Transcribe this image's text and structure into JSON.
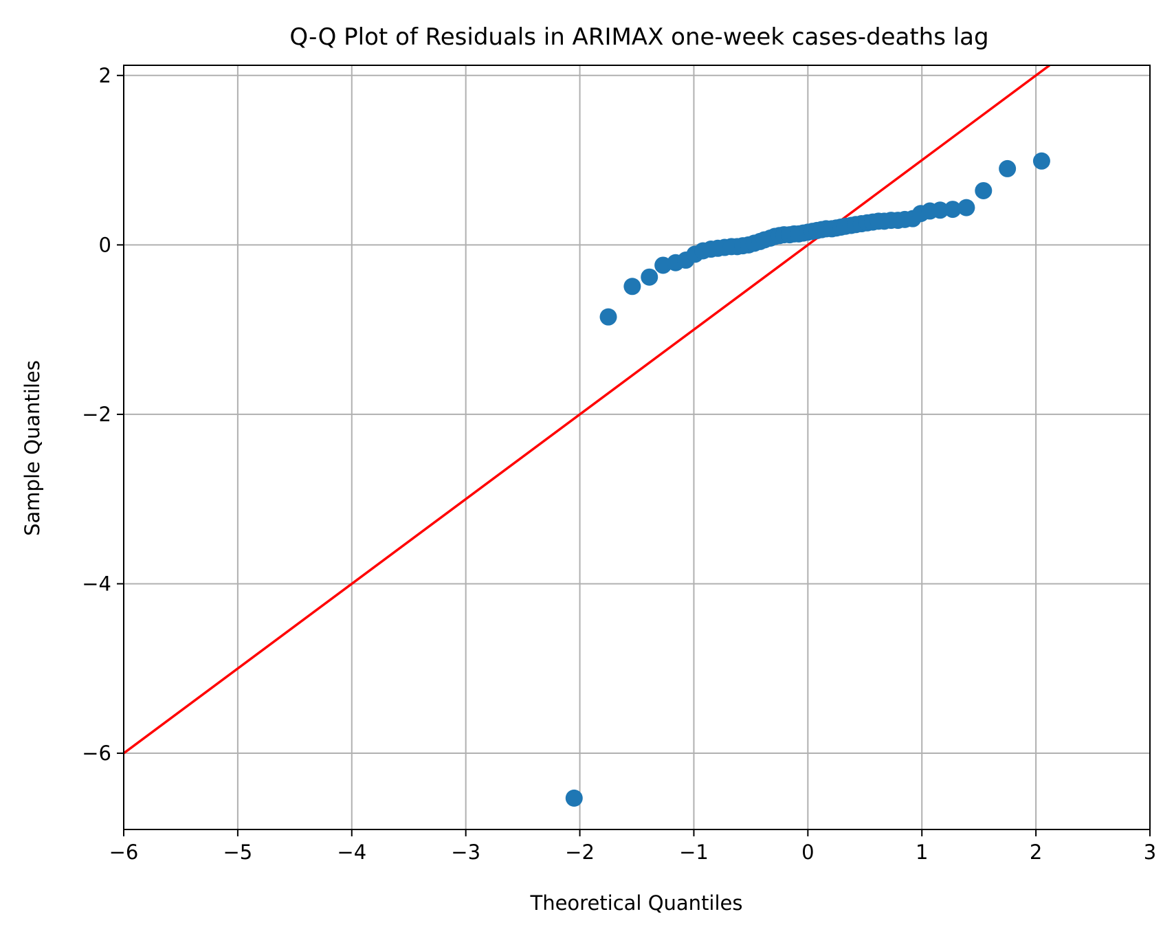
{
  "chart_data": {
    "type": "scatter",
    "title": "Q-Q Plot of Residuals in ARIMAX one-week cases-deaths lag",
    "xlabel": "Theoretical Quantiles",
    "ylabel": "Sample Quantiles",
    "xlim": [
      -6,
      3
    ],
    "ylim": [
      -6.9,
      2.12
    ],
    "xticks": [
      -6,
      -5,
      -4,
      -3,
      -2,
      -1,
      0,
      1,
      2,
      3
    ],
    "yticks": [
      -6,
      -4,
      -2,
      0,
      2
    ],
    "xtick_labels": [
      "−6",
      "−5",
      "−4",
      "−3",
      "−2",
      "−1",
      "0",
      "1",
      "2",
      "3"
    ],
    "ytick_labels": [
      "−6",
      "−4",
      "−2",
      "0",
      "2"
    ],
    "grid": true,
    "series": [
      {
        "kind": "points",
        "color": "#1f77b4",
        "x": [
          -2.05,
          -1.75,
          -1.54,
          -1.39,
          -1.27,
          -1.16,
          -1.07,
          -0.99,
          -0.92,
          -0.85,
          -0.79,
          -0.73,
          -0.67,
          -0.62,
          -0.57,
          -0.52,
          -0.47,
          -0.42,
          -0.38,
          -0.33,
          -0.29,
          -0.25,
          -0.21,
          -0.16,
          -0.12,
          -0.08,
          -0.04,
          0.0,
          0.04,
          0.08,
          0.12,
          0.16,
          0.21,
          0.25,
          0.29,
          0.33,
          0.38,
          0.42,
          0.47,
          0.52,
          0.57,
          0.62,
          0.67,
          0.73,
          0.79,
          0.85,
          0.92,
          0.99,
          1.07,
          1.16,
          1.27,
          1.39,
          1.54,
          1.75,
          2.05
        ],
        "y": [
          -6.53,
          -0.85,
          -0.49,
          -0.38,
          -0.24,
          -0.21,
          -0.18,
          -0.11,
          -0.07,
          -0.05,
          -0.04,
          -0.03,
          -0.02,
          -0.02,
          -0.01,
          0.0,
          0.02,
          0.04,
          0.06,
          0.08,
          0.1,
          0.11,
          0.12,
          0.12,
          0.13,
          0.13,
          0.14,
          0.15,
          0.16,
          0.17,
          0.18,
          0.19,
          0.19,
          0.2,
          0.21,
          0.22,
          0.23,
          0.24,
          0.25,
          0.26,
          0.27,
          0.28,
          0.28,
          0.29,
          0.29,
          0.3,
          0.31,
          0.37,
          0.4,
          0.41,
          0.42,
          0.44,
          0.64,
          0.9,
          0.99
        ]
      },
      {
        "kind": "reference-line",
        "color": "#ff0000",
        "x": [
          -6,
          2.12
        ],
        "y": [
          -6,
          2.12
        ]
      }
    ]
  }
}
